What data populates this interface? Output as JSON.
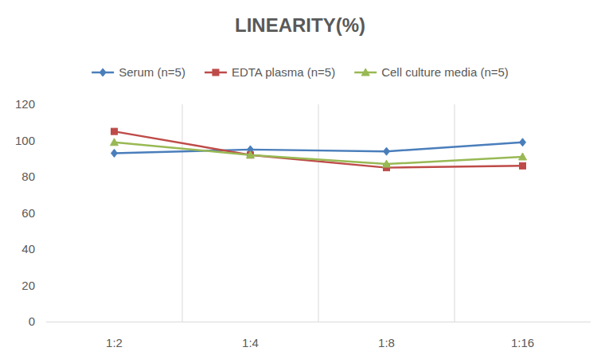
{
  "chart_data": {
    "type": "line",
    "title": "LINEARITY(%)",
    "categories": [
      "1:2",
      "1:4",
      "1:8",
      "1:16"
    ],
    "series": [
      {
        "name": "Serum (n=5)",
        "color": "#4a7ebb",
        "marker": "diamond",
        "values": [
          93,
          95,
          94,
          99
        ]
      },
      {
        "name": "EDTA plasma (n=5)",
        "color": "#be4b48",
        "marker": "square",
        "values": [
          105,
          92,
          85,
          86
        ]
      },
      {
        "name": "Cell culture media (n=5)",
        "color": "#98b954",
        "marker": "triangle",
        "values": [
          99,
          92,
          87,
          91
        ]
      }
    ],
    "ylim": [
      0,
      120
    ],
    "yticks": [
      0,
      20,
      40,
      60,
      80,
      100,
      120
    ],
    "grid": true,
    "legend": "top"
  }
}
